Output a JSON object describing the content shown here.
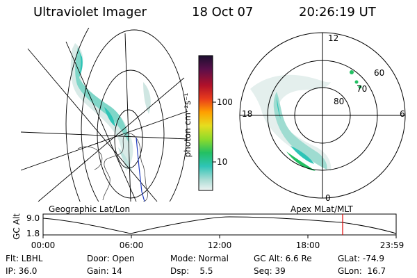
{
  "header": {
    "title": "Ultraviolet Imager",
    "date": "18 Oct 07",
    "time": "20:26:19 UT"
  },
  "colorbar": {
    "unit_label": "photon cm⁻²s⁻¹",
    "ticks": [
      "100",
      "10"
    ]
  },
  "polar": {
    "mlt_labels": {
      "top": "12",
      "left": "18",
      "right": "6",
      "bottom": "0"
    },
    "lat_labels": [
      "60",
      "70",
      "80"
    ]
  },
  "timeline": {
    "left_title": "Geographic Lat/Lon",
    "right_title": "Apex MLat/MLT",
    "axis_label": "GC Alt",
    "y_ticks": [
      "9.0",
      "1.8"
    ],
    "x_ticks": [
      "00:00",
      "06:00",
      "12:00",
      "18:00",
      "23:59"
    ],
    "current_time": "20:26:19"
  },
  "info": {
    "row1": {
      "flt": "Flt: LBHL",
      "door": "Door: Open",
      "mode": "Mode: Normal",
      "gc_alt": "GC Alt: 6.6 Re",
      "glat": "GLat: -74.9"
    },
    "row2": {
      "ip": "IP: 36.0",
      "gain": "Gain: 14",
      "dsp": "Dsp:    5.5",
      "seq": "Seq: 39",
      "glon": "GLon:  16.7"
    }
  },
  "colors": {
    "accent_marker": "#e00000",
    "aurora_strong": "#2ec4b6",
    "aurora_weak": "#bfe3de"
  }
}
